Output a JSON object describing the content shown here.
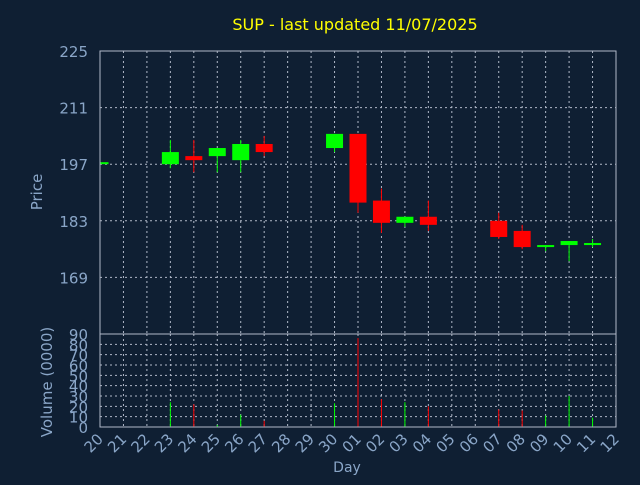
{
  "title": "SUP - last updated 11/07/2025",
  "colors": {
    "background": "#0f1f33",
    "title": "#ffff00",
    "axis_text": "#8aa6c8",
    "grid": "#b0b8c8",
    "up": "#00ff00",
    "down": "#ff0000"
  },
  "chart_data": [
    {
      "type": "candlestick",
      "ylabel": "Price",
      "ylim": [
        155,
        225
      ],
      "yticks": [
        169,
        183,
        197,
        211,
        225
      ],
      "grid": true,
      "x": [
        "20",
        "21",
        "22",
        "23",
        "24",
        "25",
        "26",
        "27",
        "28",
        "29",
        "30",
        "01",
        "02",
        "03",
        "04",
        "05",
        "06",
        "07",
        "08",
        "09",
        "10",
        "11",
        "12"
      ],
      "candles": [
        {
          "x": "20",
          "open": 197.5,
          "close": 197.5,
          "high": 197.6,
          "low": 197.4
        },
        {
          "x": "23",
          "open": 197.0,
          "close": 200.0,
          "high": 203.0,
          "low": 196.0
        },
        {
          "x": "24",
          "open": 199.0,
          "close": 198.0,
          "high": 203.0,
          "low": 195.0
        },
        {
          "x": "25",
          "open": 199.0,
          "close": 201.0,
          "high": 201.0,
          "low": 195.0
        },
        {
          "x": "26",
          "open": 198.0,
          "close": 202.0,
          "high": 203.0,
          "low": 195.0
        },
        {
          "x": "27",
          "open": 202.0,
          "close": 200.0,
          "high": 204.0,
          "low": 199.0
        },
        {
          "x": "30",
          "open": 201.0,
          "close": 204.5,
          "high": 204.5,
          "low": 200.0
        },
        {
          "x": "01",
          "open": 204.5,
          "close": 187.5,
          "high": 204.5,
          "low": 185.0
        },
        {
          "x": "02",
          "open": 188.0,
          "close": 182.5,
          "high": 191.0,
          "low": 180.0
        },
        {
          "x": "03",
          "open": 182.5,
          "close": 184.0,
          "high": 184.0,
          "low": 181.5
        },
        {
          "x": "04",
          "open": 184.0,
          "close": 182.0,
          "high": 188.0,
          "low": 180.5
        },
        {
          "x": "07",
          "open": 183.0,
          "close": 179.0,
          "high": 185.0,
          "low": 178.5
        },
        {
          "x": "08",
          "open": 180.5,
          "close": 176.5,
          "high": 182.0,
          "low": 176.0
        },
        {
          "x": "09",
          "open": 176.5,
          "close": 177.0,
          "high": 177.0,
          "low": 175.5
        },
        {
          "x": "10",
          "open": 177.0,
          "close": 178.0,
          "high": 178.0,
          "low": 173.0
        },
        {
          "x": "11",
          "open": 177.0,
          "close": 177.5,
          "high": 178.5,
          "low": 176.5
        }
      ]
    },
    {
      "type": "bar",
      "ylabel": "Volume (0000)",
      "xlabel": "Day",
      "ylim": [
        0,
        90
      ],
      "yticks": [
        0,
        10,
        20,
        30,
        40,
        50,
        60,
        70,
        80,
        90
      ],
      "grid": true,
      "x": [
        "20",
        "21",
        "22",
        "23",
        "24",
        "25",
        "26",
        "27",
        "28",
        "29",
        "30",
        "01",
        "02",
        "03",
        "04",
        "05",
        "06",
        "07",
        "08",
        "09",
        "10",
        "11",
        "12"
      ],
      "bars": [
        {
          "x": "23",
          "value": 24,
          "dir": "up"
        },
        {
          "x": "24",
          "value": 22,
          "dir": "down"
        },
        {
          "x": "25",
          "value": 2,
          "dir": "up"
        },
        {
          "x": "26",
          "value": 12,
          "dir": "up"
        },
        {
          "x": "27",
          "value": 6,
          "dir": "down"
        },
        {
          "x": "30",
          "value": 23,
          "dir": "up"
        },
        {
          "x": "01",
          "value": 86,
          "dir": "down"
        },
        {
          "x": "02",
          "value": 27,
          "dir": "down"
        },
        {
          "x": "03",
          "value": 24,
          "dir": "up"
        },
        {
          "x": "04",
          "value": 20,
          "dir": "down"
        },
        {
          "x": "07",
          "value": 17,
          "dir": "down"
        },
        {
          "x": "08",
          "value": 16,
          "dir": "down"
        },
        {
          "x": "09",
          "value": 11,
          "dir": "up"
        },
        {
          "x": "10",
          "value": 30,
          "dir": "up"
        },
        {
          "x": "11",
          "value": 9,
          "dir": "up"
        }
      ]
    }
  ]
}
